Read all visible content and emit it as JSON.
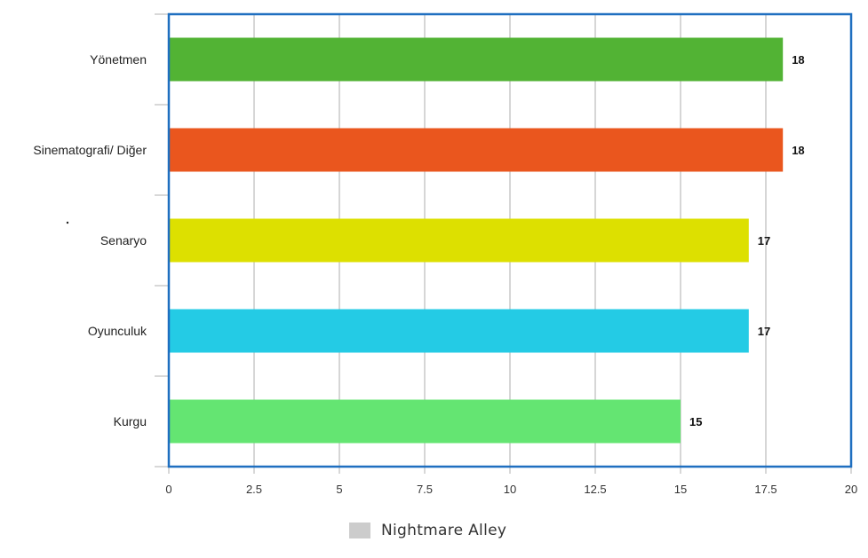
{
  "chart_data": {
    "type": "bar",
    "orientation": "horizontal",
    "categories": [
      "Yönetmen",
      "Sinematografi/ Diğer",
      "Senaryo",
      "Oyunculuk",
      "Kurgu"
    ],
    "series": [
      {
        "name": "Nightmare Alley",
        "values": [
          18,
          18,
          17,
          17,
          15
        ],
        "colors": [
          "#52b334",
          "#ea561e",
          "#dde000",
          "#24cbe5",
          "#64e572"
        ]
      }
    ],
    "data_labels": [
      "18",
      "18",
      "17",
      "17",
      "15"
    ],
    "xlim": [
      0,
      20
    ],
    "x_ticks": [
      "0",
      "2.5",
      "5",
      "7.5",
      "10",
      "12.5",
      "15",
      "17.5",
      "20"
    ],
    "grid": true,
    "legend_position": "bottom",
    "legend": {
      "label": "Nightmare Alley",
      "color": "#cccccc"
    },
    "plot_border_color": "#1f6fc0"
  }
}
